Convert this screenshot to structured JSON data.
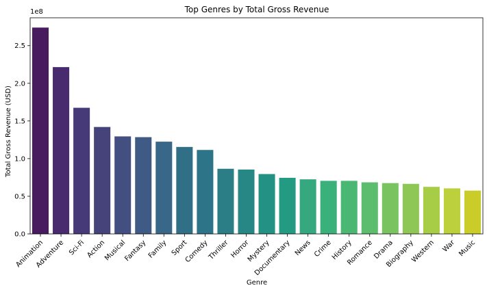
{
  "chart_data": {
    "type": "bar",
    "title": "Top Genres by Total Gross Revenue",
    "xlabel": "Genre",
    "ylabel": "Total Gross Revenue (USD)",
    "y_offset_label": "1e8",
    "categories": [
      "Animation",
      "Adventure",
      "Sci-Fi",
      "Action",
      "Musical",
      "Fantasy",
      "Family",
      "Sport",
      "Comedy",
      "Thriller",
      "Horror",
      "Mystery",
      "Documentary",
      "News",
      "Crime",
      "History",
      "Romance",
      "Drama",
      "Biography",
      "Western",
      "War",
      "Music"
    ],
    "values": [
      274000000,
      221500000,
      167500000,
      142000000,
      129500000,
      128500000,
      122500000,
      115500000,
      111500000,
      86500000,
      85500000,
      79500000,
      74500000,
      72500000,
      70500000,
      70500000,
      68500000,
      67500000,
      66500000,
      62500000,
      60500000,
      57500000
    ],
    "ylim": [
      0,
      287000000
    ],
    "yticks": [
      0,
      50000000,
      100000000,
      150000000,
      200000000,
      250000000
    ],
    "ytick_labels": [
      "0.0",
      "0.5",
      "1.0",
      "1.5",
      "2.0",
      "2.5"
    ],
    "grid": false,
    "legend": "none",
    "colors": [
      "#481b5f",
      "#472b6e",
      "#463b78",
      "#46437b",
      "#434f80",
      "#3f5a84",
      "#386787",
      "#316f87",
      "#2e7488",
      "#2b7d86",
      "#268785",
      "#239184",
      "#239b83",
      "#36a880",
      "#3ab07a",
      "#4ab773",
      "#5bbd6d",
      "#79c461",
      "#8ec755",
      "#a7cd47",
      "#bcd03b",
      "#c9cc29"
    ]
  }
}
